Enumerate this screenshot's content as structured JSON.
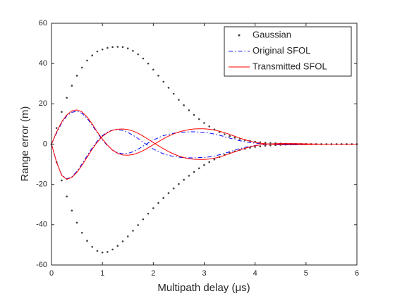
{
  "chart_data": {
    "type": "line",
    "xlabel": "Multipath delay (μs)",
    "ylabel": "Range error (m)",
    "xlim": [
      0,
      6
    ],
    "ylim": [
      -60,
      60
    ],
    "xticks": [
      0,
      1,
      2,
      3,
      4,
      5,
      6
    ],
    "yticks": [
      -60,
      -40,
      -20,
      0,
      20,
      40,
      60
    ],
    "legend": "upper-right",
    "x": [
      0,
      0.1,
      0.2,
      0.3,
      0.4,
      0.5,
      0.6,
      0.7,
      0.8,
      0.9,
      1,
      1.1,
      1.2,
      1.3,
      1.4,
      1.5,
      1.6,
      1.7,
      1.8,
      1.9,
      2,
      2.1,
      2.2,
      2.3,
      2.4,
      2.5,
      2.6,
      2.7,
      2.8,
      2.9,
      3,
      3.1,
      3.2,
      3.3,
      3.4,
      3.5,
      3.6,
      3.7,
      3.8,
      3.9,
      4,
      4.1,
      4.2,
      4.3,
      4.4,
      4.5,
      4.6,
      4.7,
      4.8,
      4.9,
      5,
      5.1,
      5.2,
      5.3,
      5.4,
      5.5,
      5.6,
      5.7,
      5.8,
      5.9,
      6
    ],
    "series": [
      {
        "name": "Gaussian",
        "color": "#404040",
        "style": "dots",
        "curves": [
          [
            0,
            8,
            16,
            23,
            29,
            34,
            38,
            41.5,
            44,
            46,
            47,
            47.8,
            48.2,
            48.3,
            48.2,
            47.5,
            46.3,
            44.6,
            42.5,
            40,
            37,
            34,
            31,
            28,
            25,
            22,
            19.3,
            16.8,
            14.5,
            12.4,
            10.5,
            8.8,
            7.3,
            6,
            4.9,
            4,
            3.2,
            2.6,
            2,
            1.6,
            1.2,
            0.9,
            0.7,
            0.5,
            0.4,
            0.3,
            0.2,
            0.15,
            0.1,
            0.1,
            0.05,
            0,
            0,
            0,
            0,
            0,
            0,
            0,
            0,
            0,
            0
          ],
          [
            0,
            -9,
            -18,
            -26,
            -33,
            -39,
            -44,
            -48,
            -51,
            -53,
            -53.8,
            -53.5,
            -52.3,
            -50.5,
            -48.3,
            -45.8,
            -43,
            -40.2,
            -37.3,
            -34.5,
            -31.8,
            -29.2,
            -26.7,
            -24.3,
            -22,
            -19.8,
            -17.7,
            -15.7,
            -13.8,
            -12,
            -10.4,
            -8.9,
            -7.6,
            -6.4,
            -5.3,
            -4.4,
            -3.6,
            -2.9,
            -2.3,
            -1.8,
            -1.4,
            -1.1,
            -0.8,
            -0.6,
            -0.45,
            -0.33,
            -0.24,
            -0.17,
            -0.12,
            -0.08,
            -0.05,
            0,
            0,
            0,
            0,
            0,
            0,
            0,
            0,
            0,
            0
          ]
        ]
      },
      {
        "name": "Original SFOL",
        "color": "#0000ff",
        "style": "dashdot",
        "curves": [
          [
            0,
            5.5,
            10.5,
            14,
            15.8,
            16.3,
            15.3,
            12.8,
            9.4,
            5.6,
            2.2,
            -0.8,
            -3,
            -4.2,
            -4.8,
            -4.6,
            -3.8,
            -2.5,
            -1,
            0.6,
            2,
            3.2,
            4.2,
            4.9,
            5.4,
            5.8,
            6,
            6.1,
            6.1,
            6,
            5.8,
            5.5,
            5,
            4.4,
            3.7,
            3,
            2.3,
            1.7,
            1.2,
            0.8,
            0.5,
            0.3,
            0.1,
            0,
            0,
            0,
            0,
            0,
            0,
            0,
            0,
            0,
            0,
            0,
            0,
            0,
            0,
            0,
            0,
            0,
            0
          ],
          [
            0,
            -9,
            -15.3,
            -17.3,
            -16.2,
            -13.5,
            -9.8,
            -5.8,
            -1.9,
            1.5,
            4.2,
            6,
            7,
            7.2,
            6.8,
            5.8,
            4.4,
            2.8,
            1,
            -0.8,
            -2.4,
            -3.7,
            -4.8,
            -5.6,
            -6.1,
            -6.5,
            -6.7,
            -6.8,
            -6.8,
            -6.7,
            -6.6,
            -6.3,
            -5.9,
            -5.3,
            -4.6,
            -3.8,
            -3,
            -2.2,
            -1.6,
            -1.1,
            -0.7,
            -0.4,
            -0.2,
            0,
            0,
            0,
            0,
            0,
            0,
            0,
            0,
            0,
            0,
            0,
            0,
            0,
            0,
            0,
            0,
            0,
            0
          ]
        ]
      },
      {
        "name": "Transmitted SFOL",
        "color": "#ff0000",
        "style": "solid",
        "curves": [
          [
            0,
            6,
            11,
            14.5,
            16.5,
            17,
            16,
            13.5,
            10,
            6,
            2.5,
            -0.5,
            -3,
            -4.6,
            -5.4,
            -5.5,
            -5.2,
            -4.4,
            -3.2,
            -1.8,
            -0.3,
            1.2,
            2.7,
            4,
            5.1,
            6,
            6.7,
            7.2,
            7.5,
            7.6,
            7.6,
            7.4,
            7,
            6.4,
            5.7,
            4.8,
            3.9,
            3,
            2.2,
            1.5,
            0.9,
            0.5,
            0.2,
            0,
            -0.2,
            -0.3,
            -0.35,
            -0.35,
            -0.3,
            -0.25,
            -0.2,
            -0.15,
            -0.1,
            -0.05,
            0,
            0,
            0,
            0,
            0,
            0,
            0
          ],
          [
            0,
            -9,
            -15.5,
            -17.5,
            -16.5,
            -14,
            -10.5,
            -6.5,
            -2.5,
            1,
            3.8,
            5.7,
            6.9,
            7.4,
            7.5,
            7.2,
            6.5,
            5.4,
            4,
            2.4,
            0.8,
            -0.8,
            -2.3,
            -3.7,
            -4.9,
            -5.9,
            -6.7,
            -7.2,
            -7.5,
            -7.6,
            -7.6,
            -7.4,
            -7,
            -6.4,
            -5.6,
            -4.7,
            -3.8,
            -2.9,
            -2.1,
            -1.4,
            -0.8,
            -0.4,
            -0.1,
            0.1,
            0.25,
            0.3,
            0.3,
            0.3,
            0.25,
            0.2,
            0.15,
            0.1,
            0.05,
            0,
            0,
            0,
            0,
            0,
            0,
            0,
            0
          ]
        ]
      }
    ]
  }
}
